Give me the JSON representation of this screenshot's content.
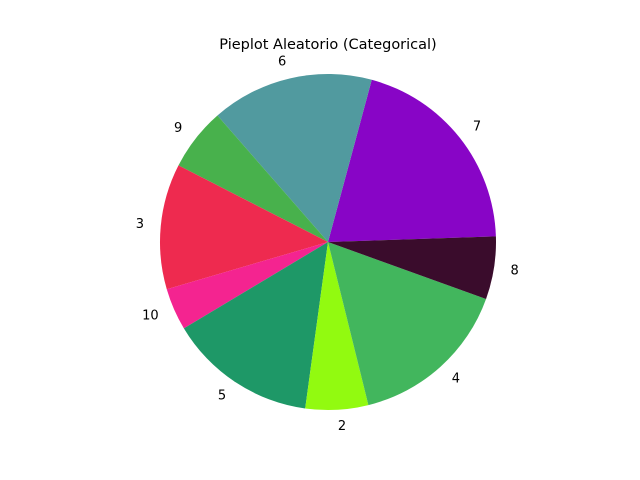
{
  "chart_data": {
    "type": "pie",
    "title": "Pieplot Aleatorio (Categorical)",
    "labels": [
      "7",
      "6",
      "9",
      "3",
      "10",
      "5",
      "2",
      "4",
      "8"
    ],
    "values": [
      20.5,
      15.8,
      6.1,
      12.2,
      4.1,
      14.4,
      6.1,
      15.8,
      6.1
    ],
    "colors": [
      "#8805c6",
      "#519a9f",
      "#48b14c",
      "#ee2a4f",
      "#f42490",
      "#1e9867",
      "#92fa10",
      "#42b65d",
      "#3a0c2c"
    ],
    "start_angle_deg": 1.9,
    "direction": "counterclockwise"
  }
}
